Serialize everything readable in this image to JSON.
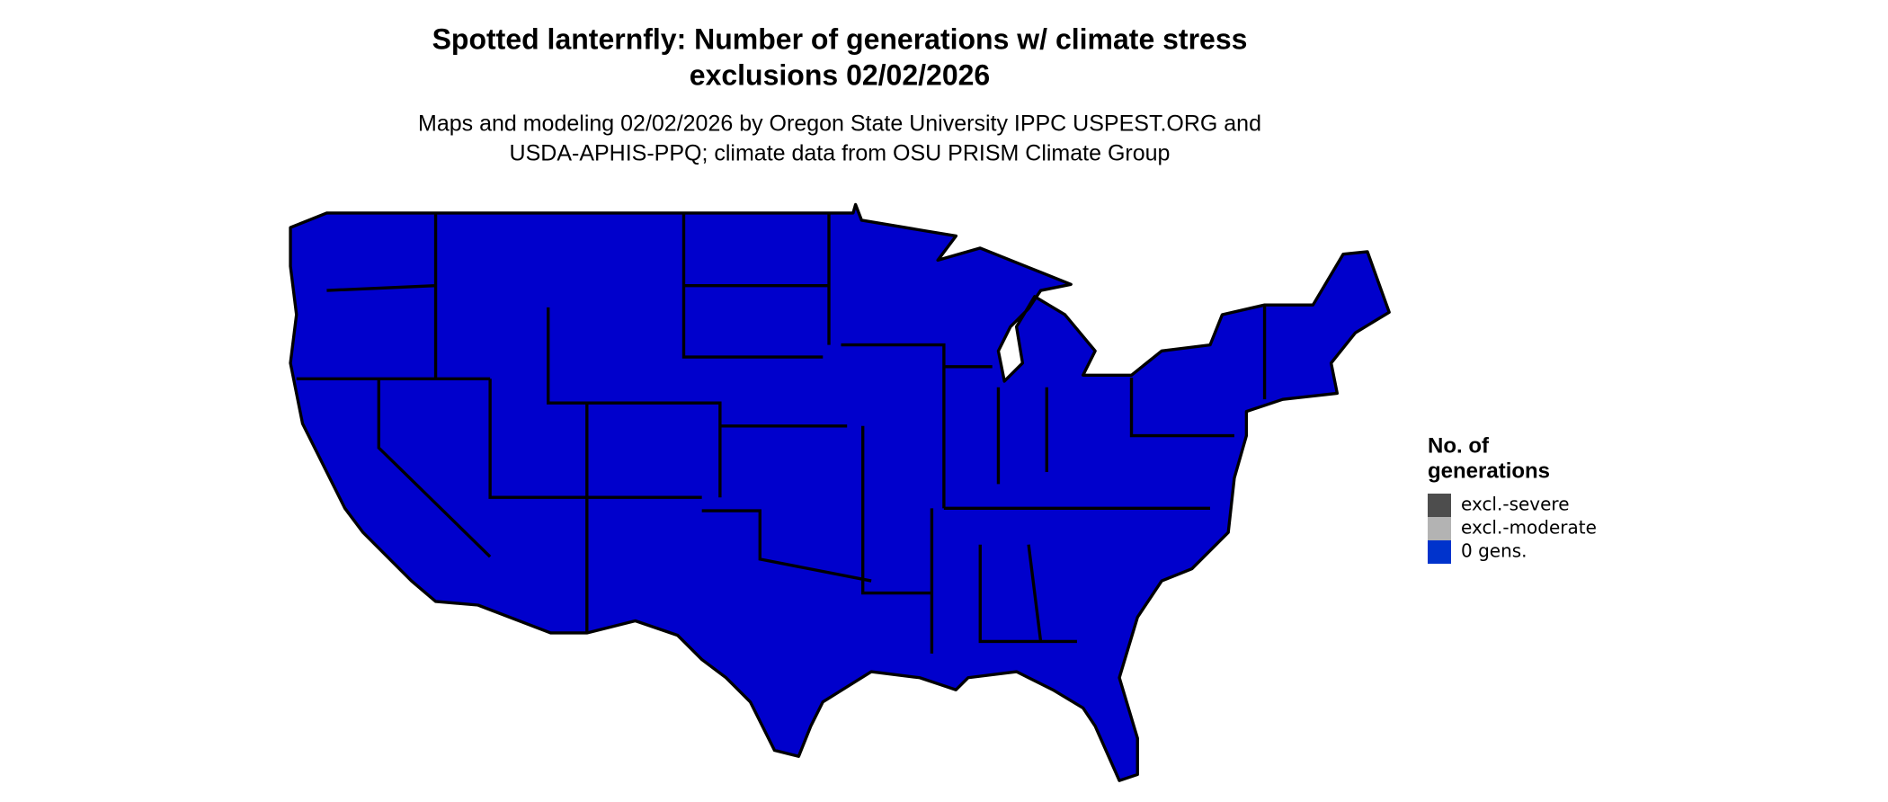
{
  "title": [
    "Spotted lanternfly: Number of generations w/ climate stress",
    "exclusions 02/02/2026"
  ],
  "subtitle": [
    "Maps and modeling 02/02/2026 by Oregon State University IPPC USPEST.ORG and",
    "USDA-APHIS-PPQ; climate data from OSU PRISM Climate Group"
  ],
  "legend": {
    "title": [
      "No. of",
      "generations"
    ],
    "items": [
      {
        "label": "excl.-severe",
        "color": "#4d4d4d"
      },
      {
        "label": "excl.-moderate",
        "color": "#b3b3b3"
      },
      {
        "label": "0 gens.",
        "color": "#0033cc"
      }
    ]
  }
}
